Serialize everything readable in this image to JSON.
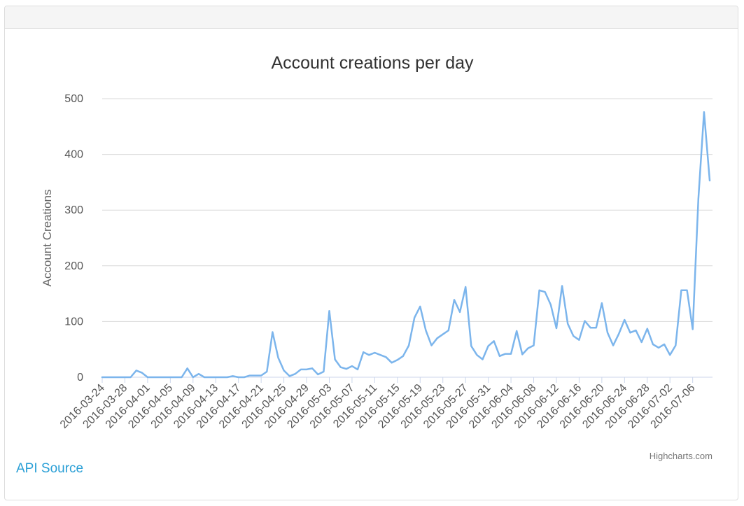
{
  "panel": {
    "link_label": "API Source"
  },
  "chart_data": {
    "type": "line",
    "title": "Account creations per day",
    "ylabel": "Account Creations",
    "xlabel": "",
    "ylim": [
      0,
      500
    ],
    "y_ticks": [
      0,
      100,
      200,
      300,
      400,
      500
    ],
    "x_tick_labels": [
      "2016-03-24",
      "2016-03-28",
      "2016-04-01",
      "2016-04-05",
      "2016-04-09",
      "2016-04-13",
      "2016-04-17",
      "2016-04-21",
      "2016-04-25",
      "2016-04-29",
      "2016-05-03",
      "2016-05-07",
      "2016-05-11",
      "2016-05-15",
      "2016-05-19",
      "2016-05-23",
      "2016-05-27",
      "2016-05-31",
      "2016-06-04",
      "2016-06-08",
      "2016-06-12",
      "2016-06-16",
      "2016-06-20",
      "2016-06-24",
      "2016-06-28",
      "2016-07-02",
      "2016-07-06"
    ],
    "grid": true,
    "legend": "none",
    "credits": "Highcharts.com",
    "colors": {
      "line": "#7cb5ec",
      "grid": "#d8d8d8",
      "axis": "#ccd6eb",
      "text": "#555555",
      "title": "#333333",
      "link": "#2a9fd6"
    },
    "series": [
      {
        "start_date": "2016-03-24",
        "values": [
          0,
          0,
          0,
          0,
          0,
          0,
          12,
          8,
          0,
          0,
          0,
          0,
          0,
          0,
          0,
          16,
          0,
          6,
          0,
          0,
          0,
          0,
          0,
          2,
          0,
          0,
          3,
          3,
          3,
          10,
          81,
          35,
          12,
          2,
          6,
          14,
          14,
          16,
          5,
          10,
          119,
          32,
          18,
          15,
          20,
          14,
          45,
          40,
          44,
          40,
          36,
          26,
          31,
          38,
          57,
          107,
          127,
          84,
          57,
          70,
          77,
          84,
          139,
          117,
          162,
          56,
          40,
          32,
          56,
          65,
          38,
          42,
          42,
          83,
          41,
          52,
          57,
          156,
          153,
          130,
          88,
          164,
          96,
          74,
          67,
          101,
          89,
          89,
          133,
          80,
          57,
          78,
          103,
          80,
          84,
          63,
          87,
          59,
          53,
          59,
          40,
          57,
          156,
          156,
          86,
          320,
          476,
          353
        ]
      }
    ]
  }
}
